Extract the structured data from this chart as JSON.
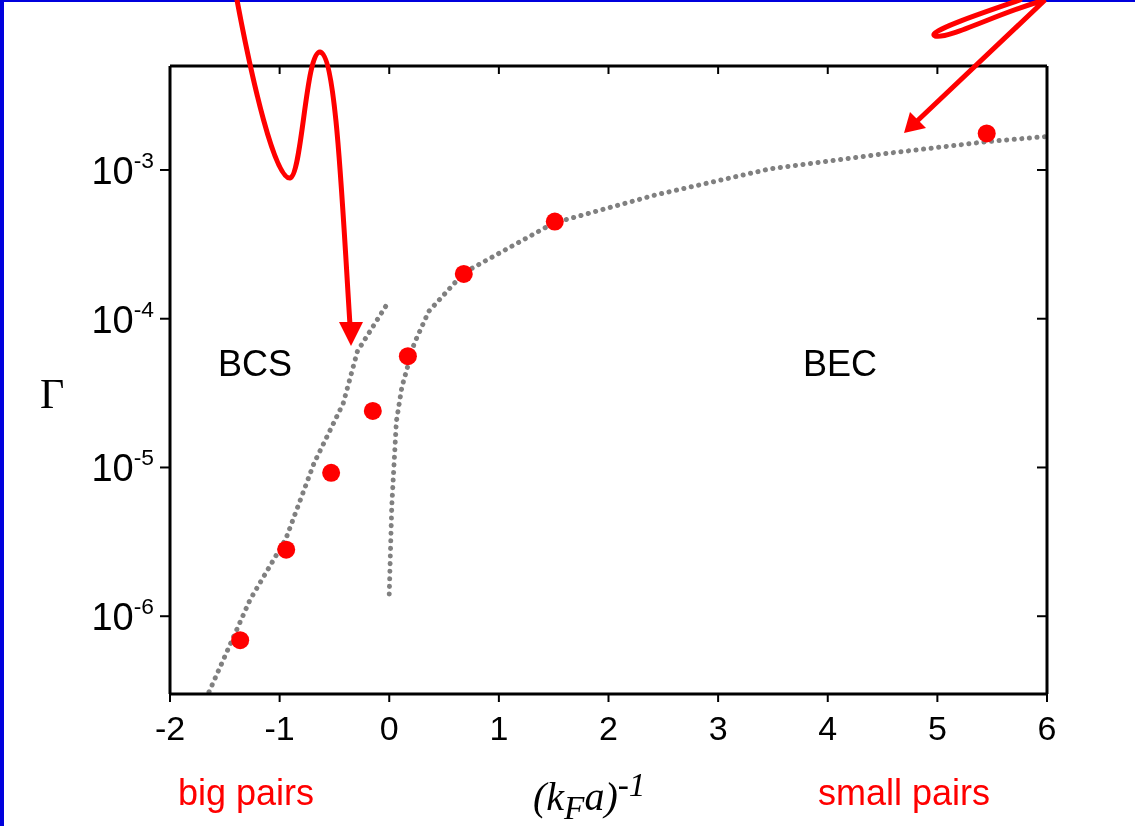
{
  "chart_data": {
    "type": "scatter",
    "xlabel": "(k$_{F}$a)$^{-1}$",
    "ylabel": "Γ",
    "series": [
      {
        "color": "#ff0000",
        "marker": "circle",
        "x": [
          -1.36,
          -0.94,
          -0.53,
          -0.15,
          0.17,
          0.68,
          1.51,
          5.45
        ],
        "values": [
          6.9e-07,
          2.8e-06,
          9.2e-06,
          2.4e-05,
          5.6e-05,
          0.0002,
          0.00045,
          0.00176
        ]
      },
      {
        "type": "line",
        "color": "#808080",
        "line_style": "dotted",
        "marker": "none",
        "x": [
          -1.644,
          -1.27,
          -0.944,
          -0.686,
          -0.42,
          -0.29,
          -0.015
        ],
        "values": [
          3.1e-07,
          1.29e-06,
          3.3e-06,
          1.07e-05,
          2.7e-05,
          6.05e-05,
          0.000127
        ]
      },
      {
        "type": "line",
        "color": "#808080",
        "line_style": "dotted",
        "marker": "none",
        "x": [
          0.0,
          0.023,
          0.065,
          0.115,
          0.227,
          0.36,
          0.683,
          1.5,
          2.43,
          3.48,
          4.53,
          5.45,
          6.0
        ],
        "values": [
          1.41e-06,
          5.5e-06,
          2.04e-05,
          3.47e-05,
          6.8e-05,
          0.000112,
          0.000204,
          0.00044,
          0.00068,
          0.00102,
          0.00129,
          0.00155,
          0.00168
        ]
      }
    ],
    "xlim": [
      -2,
      6
    ],
    "xticks": [
      -2,
      -1,
      0,
      1,
      2,
      3,
      4,
      5,
      6
    ],
    "ylim": [
      3e-07,
      0.005
    ],
    "yticks": [
      {
        "value": 1e-06,
        "label": "10$^{-6}$"
      },
      {
        "value": 1e-05,
        "label": "10$^{-5}$"
      },
      {
        "value": 0.0001,
        "label": "10$^{-4}$"
      },
      {
        "value": 0.001,
        "label": "10$^{-3}$"
      }
    ],
    "log": "y",
    "annotations": [
      "BCS",
      "BEC",
      "big pairs",
      "small pairs"
    ]
  }
}
